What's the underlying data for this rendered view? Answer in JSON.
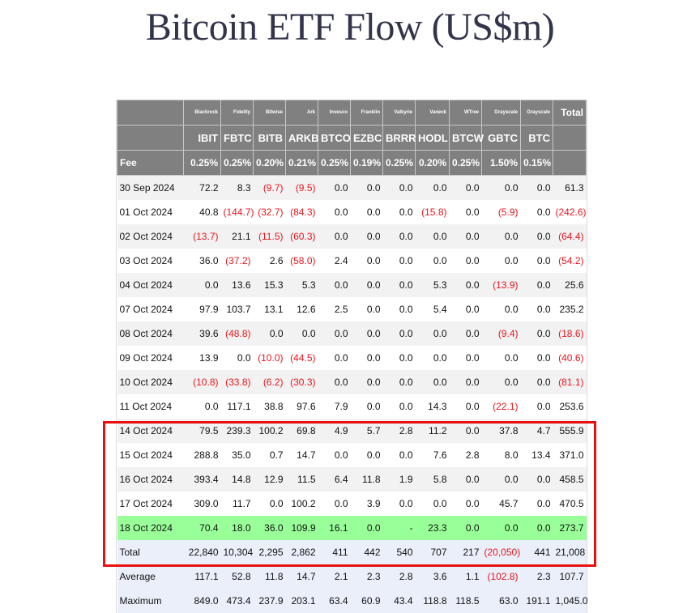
{
  "page": {
    "title": "Bitcoin ETF Flow (US$m)"
  },
  "table": {
    "total_label": "Total",
    "fee_label": "Fee",
    "columns": [
      {
        "issuer": "Blackrock",
        "ticker": "IBIT",
        "fee": "0.25%"
      },
      {
        "issuer": "Fidelity",
        "ticker": "FBTC",
        "fee": "0.25%"
      },
      {
        "issuer": "Bitwise",
        "ticker": "BITB",
        "fee": "0.20%"
      },
      {
        "issuer": "Ark",
        "ticker": "ARKB",
        "fee": "0.21%"
      },
      {
        "issuer": "Invesco",
        "ticker": "BTCO",
        "fee": "0.25%"
      },
      {
        "issuer": "Franklin",
        "ticker": "EZBC",
        "fee": "0.19%"
      },
      {
        "issuer": "Valkyrie",
        "ticker": "BRRR",
        "fee": "0.25%"
      },
      {
        "issuer": "Vaneck",
        "ticker": "HODL",
        "fee": "0.20%"
      },
      {
        "issuer": "WTree",
        "ticker": "BTCW",
        "fee": "0.25%"
      },
      {
        "issuer": "Grayscale",
        "ticker": "GBTC",
        "fee": "1.50%"
      },
      {
        "issuer": "Grayscale",
        "ticker": "BTC",
        "fee": "0.15%"
      }
    ],
    "rows": [
      {
        "date": "30 Sep 2024",
        "values": [
          "72.2",
          "8.3",
          "(9.7)",
          "(9.5)",
          "0.0",
          "0.0",
          "0.0",
          "0.0",
          "0.0",
          "0.0",
          "0.0"
        ],
        "total": "61.3"
      },
      {
        "date": "01 Oct 2024",
        "values": [
          "40.8",
          "(144.7)",
          "(32.7)",
          "(84.3)",
          "0.0",
          "0.0",
          "0.0",
          "(15.8)",
          "0.0",
          "(5.9)",
          "0.0"
        ],
        "total": "(242.6)"
      },
      {
        "date": "02 Oct 2024",
        "values": [
          "(13.7)",
          "21.1",
          "(11.5)",
          "(60.3)",
          "0.0",
          "0.0",
          "0.0",
          "0.0",
          "0.0",
          "0.0",
          "0.0"
        ],
        "total": "(64.4)"
      },
      {
        "date": "03 Oct 2024",
        "values": [
          "36.0",
          "(37.2)",
          "2.6",
          "(58.0)",
          "2.4",
          "0.0",
          "0.0",
          "0.0",
          "0.0",
          "0.0",
          "0.0"
        ],
        "total": "(54.2)"
      },
      {
        "date": "04 Oct 2024",
        "values": [
          "0.0",
          "13.6",
          "15.3",
          "5.3",
          "0.0",
          "0.0",
          "0.0",
          "5.3",
          "0.0",
          "(13.9)",
          "0.0"
        ],
        "total": "25.6"
      },
      {
        "date": "07 Oct 2024",
        "values": [
          "97.9",
          "103.7",
          "13.1",
          "12.6",
          "2.5",
          "0.0",
          "0.0",
          "5.4",
          "0.0",
          "0.0",
          "0.0"
        ],
        "total": "235.2"
      },
      {
        "date": "08 Oct 2024",
        "values": [
          "39.6",
          "(48.8)",
          "0.0",
          "0.0",
          "0.0",
          "0.0",
          "0.0",
          "0.0",
          "0.0",
          "(9.4)",
          "0.0"
        ],
        "total": "(18.6)"
      },
      {
        "date": "09 Oct 2024",
        "values": [
          "13.9",
          "0.0",
          "(10.0)",
          "(44.5)",
          "0.0",
          "0.0",
          "0.0",
          "0.0",
          "0.0",
          "0.0",
          "0.0"
        ],
        "total": "(40.6)"
      },
      {
        "date": "10 Oct 2024",
        "values": [
          "(10.8)",
          "(33.8)",
          "(6.2)",
          "(30.3)",
          "0.0",
          "0.0",
          "0.0",
          "0.0",
          "0.0",
          "0.0",
          "0.0"
        ],
        "total": "(81.1)"
      },
      {
        "date": "11 Oct 2024",
        "values": [
          "0.0",
          "117.1",
          "38.8",
          "97.6",
          "7.9",
          "0.0",
          "0.0",
          "14.3",
          "0.0",
          "(22.1)",
          "0.0"
        ],
        "total": "253.6"
      },
      {
        "date": "14 Oct 2024",
        "values": [
          "79.5",
          "239.3",
          "100.2",
          "69.8",
          "4.9",
          "5.7",
          "2.8",
          "11.2",
          "0.0",
          "37.8",
          "4.7"
        ],
        "total": "555.9"
      },
      {
        "date": "15 Oct 2024",
        "values": [
          "288.8",
          "35.0",
          "0.7",
          "14.7",
          "0.0",
          "0.0",
          "0.0",
          "7.6",
          "2.8",
          "8.0",
          "13.4"
        ],
        "total": "371.0"
      },
      {
        "date": "16 Oct 2024",
        "values": [
          "393.4",
          "14.8",
          "12.9",
          "11.5",
          "6.4",
          "11.8",
          "1.9",
          "5.8",
          "0.0",
          "0.0",
          "0.0"
        ],
        "total": "458.5"
      },
      {
        "date": "17 Oct 2024",
        "values": [
          "309.0",
          "11.7",
          "0.0",
          "100.2",
          "0.0",
          "3.9",
          "0.0",
          "0.0",
          "0.0",
          "45.7",
          "0.0"
        ],
        "total": "470.5"
      },
      {
        "date": "18 Oct 2024",
        "values": [
          "70.4",
          "18.0",
          "36.0",
          "109.9",
          "16.1",
          "0.0",
          "-",
          "23.3",
          "0.0",
          "0.0",
          "0.0"
        ],
        "total": "273.7",
        "latest": true
      }
    ],
    "summary": [
      {
        "label": "Total",
        "values": [
          "22,840",
          "10,304",
          "2,295",
          "2,862",
          "411",
          "442",
          "540",
          "707",
          "217",
          "(20,050)",
          "441"
        ],
        "total": "21,008"
      },
      {
        "label": "Average",
        "values": [
          "117.1",
          "52.8",
          "11.8",
          "14.7",
          "2.1",
          "2.3",
          "2.8",
          "3.6",
          "1.1",
          "(102.8)",
          "2.3"
        ],
        "total": "107.7"
      },
      {
        "label": "Maximum",
        "values": [
          "849.0",
          "473.4",
          "237.9",
          "203.1",
          "63.4",
          "60.9",
          "43.4",
          "118.8",
          "118.5",
          "63.0",
          "191.1"
        ],
        "total": "1,045.0"
      }
    ]
  },
  "colors": {
    "header_bg": "#808080",
    "negative": "#e8161c",
    "latest_row": "#99ff99",
    "summary_row": "#eaeff9",
    "highlight_box": "#e81010",
    "title": "#32354a"
  }
}
